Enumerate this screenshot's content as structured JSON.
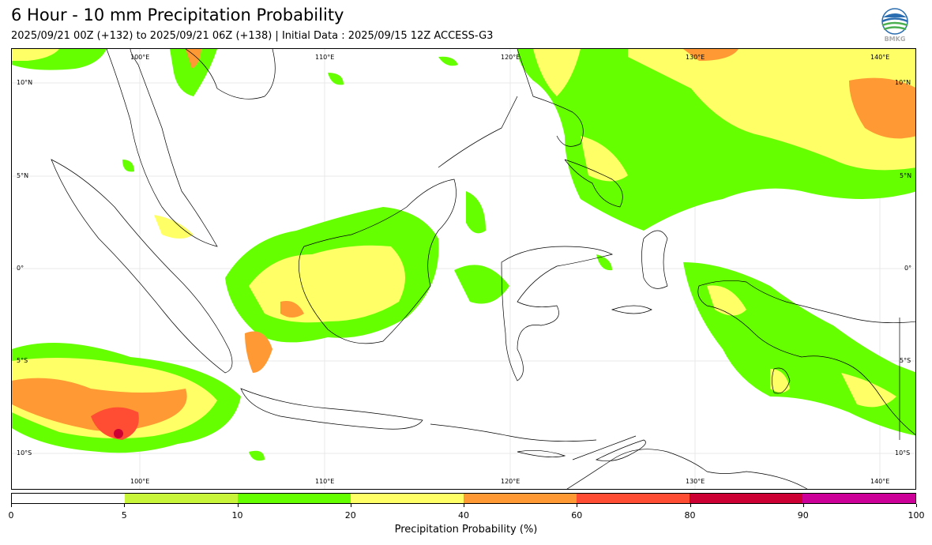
{
  "header": {
    "title": "6 Hour - 10 mm Precipitation Probability",
    "subtitle": "2025/09/21 00Z (+132) to 2025/09/21 06Z (+138) | Initial Data : 2025/09/15 12Z ACCESS-G3",
    "logo_text": "BMKG"
  },
  "map": {
    "lon_labels": [
      "100°E",
      "110°E",
      "120°E",
      "130°E",
      "140°E"
    ],
    "lat_labels": [
      "10°N",
      "5°N",
      "0°",
      "5°S",
      "10°S"
    ]
  },
  "colorbar": {
    "label": "Precipitation Probability (%)",
    "ticks": [
      "0",
      "5",
      "10",
      "20",
      "40",
      "60",
      "80",
      "90",
      "100"
    ],
    "colors": [
      "#ffffff",
      "#c8f53a",
      "#66ff00",
      "#ffff66",
      "#ff9933",
      "#ff4d33",
      "#cc0033",
      "#cc0099"
    ]
  }
}
